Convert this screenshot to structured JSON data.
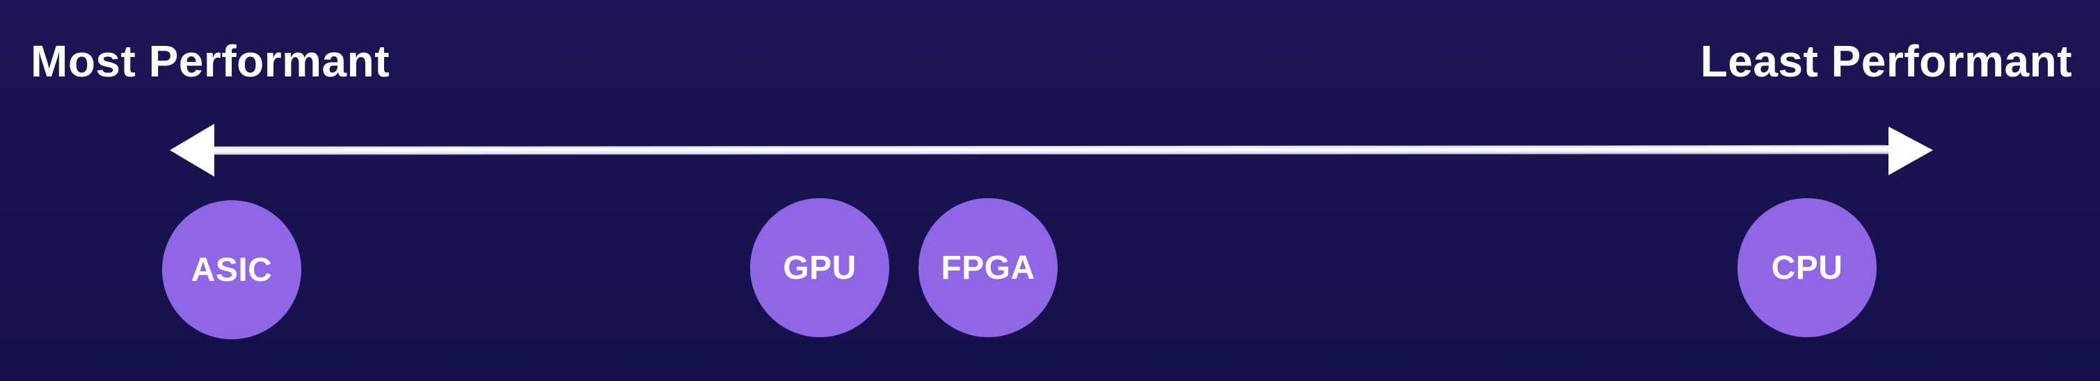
{
  "labels": {
    "left": "Most Performant",
    "right": "Least Performant"
  },
  "items": [
    {
      "id": "asic",
      "label": "ASIC"
    },
    {
      "id": "gpu",
      "label": "GPU"
    },
    {
      "id": "fpga",
      "label": "FPGA"
    },
    {
      "id": "cpu",
      "label": "CPU"
    }
  ],
  "colors": {
    "background": "#16134f",
    "node": "#9066e6",
    "text": "#ffffff",
    "axis": "#ffffff"
  }
}
